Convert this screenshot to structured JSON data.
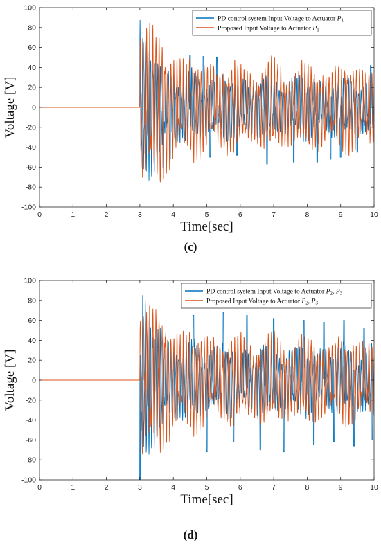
{
  "chart_data": [
    {
      "type": "line",
      "panel_label": "(c)",
      "xlabel": "Time[sec]",
      "ylabel": "Voltage [V]",
      "xlim": [
        0,
        10
      ],
      "ylim": [
        -100,
        100
      ],
      "xticks": [
        0,
        1,
        2,
        3,
        4,
        5,
        6,
        7,
        8,
        9,
        10
      ],
      "yticks": [
        -100,
        -80,
        -60,
        -40,
        -20,
        0,
        20,
        40,
        60,
        80,
        100
      ],
      "grid": false,
      "legend_position": "top-right",
      "colors": {
        "pd": "#0072bd",
        "proposed": "#d95319"
      },
      "series": [
        {
          "name": "PD control system Input Voltage to Actuator P1",
          "legend_text": "PD control system Input Voltage to Actuator ",
          "legend_sym": "P",
          "legend_sub": "1",
          "color": "#0072bd",
          "onset": 3.0,
          "frequency_hz": 13,
          "phase": 1.1,
          "amplitude_peak": 83,
          "amplitude_steady": 28,
          "decay_time": 0.55,
          "spikes": [
            {
              "t": 3.7,
              "v": -60
            },
            {
              "t": 3.9,
              "v": -52
            },
            {
              "t": 4.5,
              "v": 52
            },
            {
              "t": 4.9,
              "v": 51
            },
            {
              "t": 5.1,
              "v": -50
            },
            {
              "t": 5.3,
              "v": 50
            },
            {
              "t": 5.9,
              "v": -48
            },
            {
              "t": 6.8,
              "v": -57
            },
            {
              "t": 7.6,
              "v": -55
            },
            {
              "t": 8.3,
              "v": -55
            },
            {
              "t": 8.7,
              "v": -52
            },
            {
              "t": 9.0,
              "v": -50
            },
            {
              "t": 9.5,
              "v": -45
            },
            {
              "t": 9.9,
              "v": 42
            }
          ]
        },
        {
          "name": "Proposed Input Voltage to Actuator P1",
          "legend_text": "Proposed Input Voltage to Actuator ",
          "legend_sym": "P",
          "legend_sub": "1",
          "color": "#d95319",
          "onset": 3.0,
          "frequency_hz": 11,
          "phase": 0.0,
          "amplitude_peak": 93,
          "amplitude_steady": 40,
          "decay_time": 0.75,
          "spikes": []
        }
      ]
    },
    {
      "type": "line",
      "panel_label": "(d)",
      "xlabel": "Time[sec]",
      "ylabel": "Voltage [V]",
      "xlim": [
        0,
        10
      ],
      "ylim": [
        -100,
        100
      ],
      "xticks": [
        0,
        1,
        2,
        3,
        4,
        5,
        6,
        7,
        8,
        9,
        10
      ],
      "yticks": [
        -100,
        -80,
        -60,
        -40,
        -20,
        0,
        20,
        40,
        60,
        80,
        100
      ],
      "grid": false,
      "legend_position": "top-right",
      "colors": {
        "pd": "#0072bd",
        "proposed": "#d95319"
      },
      "series": [
        {
          "name": "PD control system Input Voltage to Actuator P2, P3",
          "legend_text": "PD control system Input Voltage to Actuator ",
          "legend_sym": "P",
          "legend_sub": "2",
          "legend_sym2": "P",
          "legend_sub2": "3",
          "color": "#0072bd",
          "onset": 3.0,
          "frequency_hz": 13,
          "phase": 1.1,
          "amplitude_peak": 92,
          "amplitude_steady": 32,
          "decay_time": 0.5,
          "spikes": [
            {
              "t": 3.0,
              "v": -100
            },
            {
              "t": 4.6,
              "v": 65
            },
            {
              "t": 5.0,
              "v": -72
            },
            {
              "t": 5.5,
              "v": 68
            },
            {
              "t": 5.8,
              "v": -62
            },
            {
              "t": 6.2,
              "v": 65
            },
            {
              "t": 6.6,
              "v": -70
            },
            {
              "t": 7.0,
              "v": 62
            },
            {
              "t": 7.3,
              "v": -72
            },
            {
              "t": 7.9,
              "v": 60
            },
            {
              "t": 8.2,
              "v": -65
            },
            {
              "t": 8.5,
              "v": 58
            },
            {
              "t": 8.8,
              "v": -62
            },
            {
              "t": 9.1,
              "v": 60
            },
            {
              "t": 9.4,
              "v": -66
            },
            {
              "t": 9.7,
              "v": 52
            },
            {
              "t": 9.95,
              "v": -60
            }
          ]
        },
        {
          "name": "Proposed Input Voltage to Actuator P2, P3",
          "legend_text": "Proposed Input Voltage to Actuator ",
          "legend_sym": "P",
          "legend_sub": "2",
          "legend_sym2": "P",
          "legend_sub2": "3",
          "color": "#d95319",
          "onset": 3.0,
          "frequency_hz": 11,
          "phase": 0.0,
          "amplitude_peak": 90,
          "amplitude_steady": 40,
          "decay_time": 0.7,
          "spikes": []
        }
      ]
    }
  ]
}
